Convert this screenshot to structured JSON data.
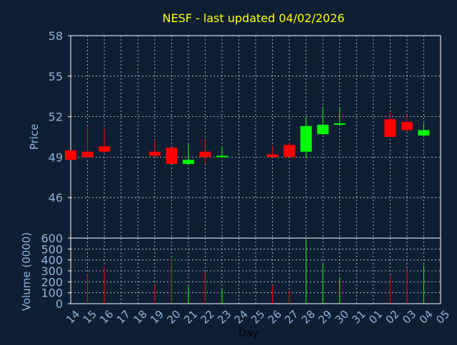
{
  "chart_data": [
    {
      "type": "candlestick",
      "title": "NESF - last updated 04/02/2026",
      "ylabel": "Price",
      "ylim": [
        43,
        58
      ],
      "yticks": [
        46,
        49,
        52,
        55,
        58
      ],
      "grid": true,
      "colors": {
        "up": "#00ff00",
        "down": "#ff0000",
        "title": "#ffff00",
        "axis_text": "#8fb3d9",
        "grid": "#d0d0d0"
      },
      "candles": [
        {
          "day": "14",
          "open": 49.5,
          "high": 49.5,
          "low": 48.8,
          "close": 48.8
        },
        {
          "day": "15",
          "open": 49.4,
          "high": 51.2,
          "low": 48.9,
          "close": 49.0
        },
        {
          "day": "16",
          "open": 49.8,
          "high": 51.1,
          "low": 49.3,
          "close": 49.4
        },
        {
          "day": "19",
          "open": 49.4,
          "high": 50.3,
          "low": 49.0,
          "close": 49.1
        },
        {
          "day": "20",
          "open": 49.7,
          "high": 49.7,
          "low": 48.5,
          "close": 48.5
        },
        {
          "day": "21",
          "open": 48.5,
          "high": 50.0,
          "low": 48.4,
          "close": 48.8
        },
        {
          "day": "22",
          "open": 49.4,
          "high": 50.4,
          "low": 48.5,
          "close": 49.0
        },
        {
          "day": "23",
          "open": 49.0,
          "high": 49.8,
          "low": 48.9,
          "close": 49.1
        },
        {
          "day": "26",
          "open": 49.2,
          "high": 49.8,
          "low": 49.0,
          "close": 49.0
        },
        {
          "day": "27",
          "open": 49.9,
          "high": 50.1,
          "low": 49.0,
          "close": 49.0
        },
        {
          "day": "28",
          "open": 49.4,
          "high": 52.0,
          "low": 48.9,
          "close": 51.3
        },
        {
          "day": "29",
          "open": 50.7,
          "high": 52.7,
          "low": 50.7,
          "close": 51.4
        },
        {
          "day": "30",
          "open": 51.4,
          "high": 52.6,
          "low": 51.3,
          "close": 51.5
        },
        {
          "day": "02",
          "open": 51.8,
          "high": 52.3,
          "low": 50.5,
          "close": 50.5
        },
        {
          "day": "03",
          "open": 51.6,
          "high": 52.1,
          "low": 50.9,
          "close": 51.0
        },
        {
          "day": "04",
          "open": 50.6,
          "high": 51.5,
          "low": 50.5,
          "close": 51.0
        }
      ]
    },
    {
      "type": "bar",
      "ylabel": "Volume (0000)",
      "xlabel": "Day",
      "ylim": [
        0,
        600
      ],
      "yticks": [
        0,
        100,
        200,
        300,
        400,
        500,
        600
      ],
      "categories": [
        "14",
        "15",
        "16",
        "17",
        "18",
        "19",
        "20",
        "21",
        "22",
        "23",
        "24",
        "25",
        "26",
        "27",
        "28",
        "29",
        "30",
        "31",
        "01",
        "02",
        "03",
        "04",
        "05"
      ],
      "bars": [
        {
          "day": "15",
          "value": 270,
          "dir": "down"
        },
        {
          "day": "16",
          "value": 340,
          "dir": "down"
        },
        {
          "day": "19",
          "value": 175,
          "dir": "down"
        },
        {
          "day": "20",
          "value": 420,
          "dir": "down"
        },
        {
          "day": "21",
          "value": 160,
          "dir": "up"
        },
        {
          "day": "22",
          "value": 290,
          "dir": "down"
        },
        {
          "day": "23",
          "value": 130,
          "dir": "up"
        },
        {
          "day": "26",
          "value": 170,
          "dir": "down"
        },
        {
          "day": "27",
          "value": 120,
          "dir": "down"
        },
        {
          "day": "28",
          "value": 585,
          "dir": "up"
        },
        {
          "day": "29",
          "value": 360,
          "dir": "up"
        },
        {
          "day": "30",
          "value": 240,
          "dir": "up"
        },
        {
          "day": "02",
          "value": 250,
          "dir": "down"
        },
        {
          "day": "03",
          "value": 320,
          "dir": "down"
        },
        {
          "day": "04",
          "value": 355,
          "dir": "up"
        }
      ]
    }
  ]
}
